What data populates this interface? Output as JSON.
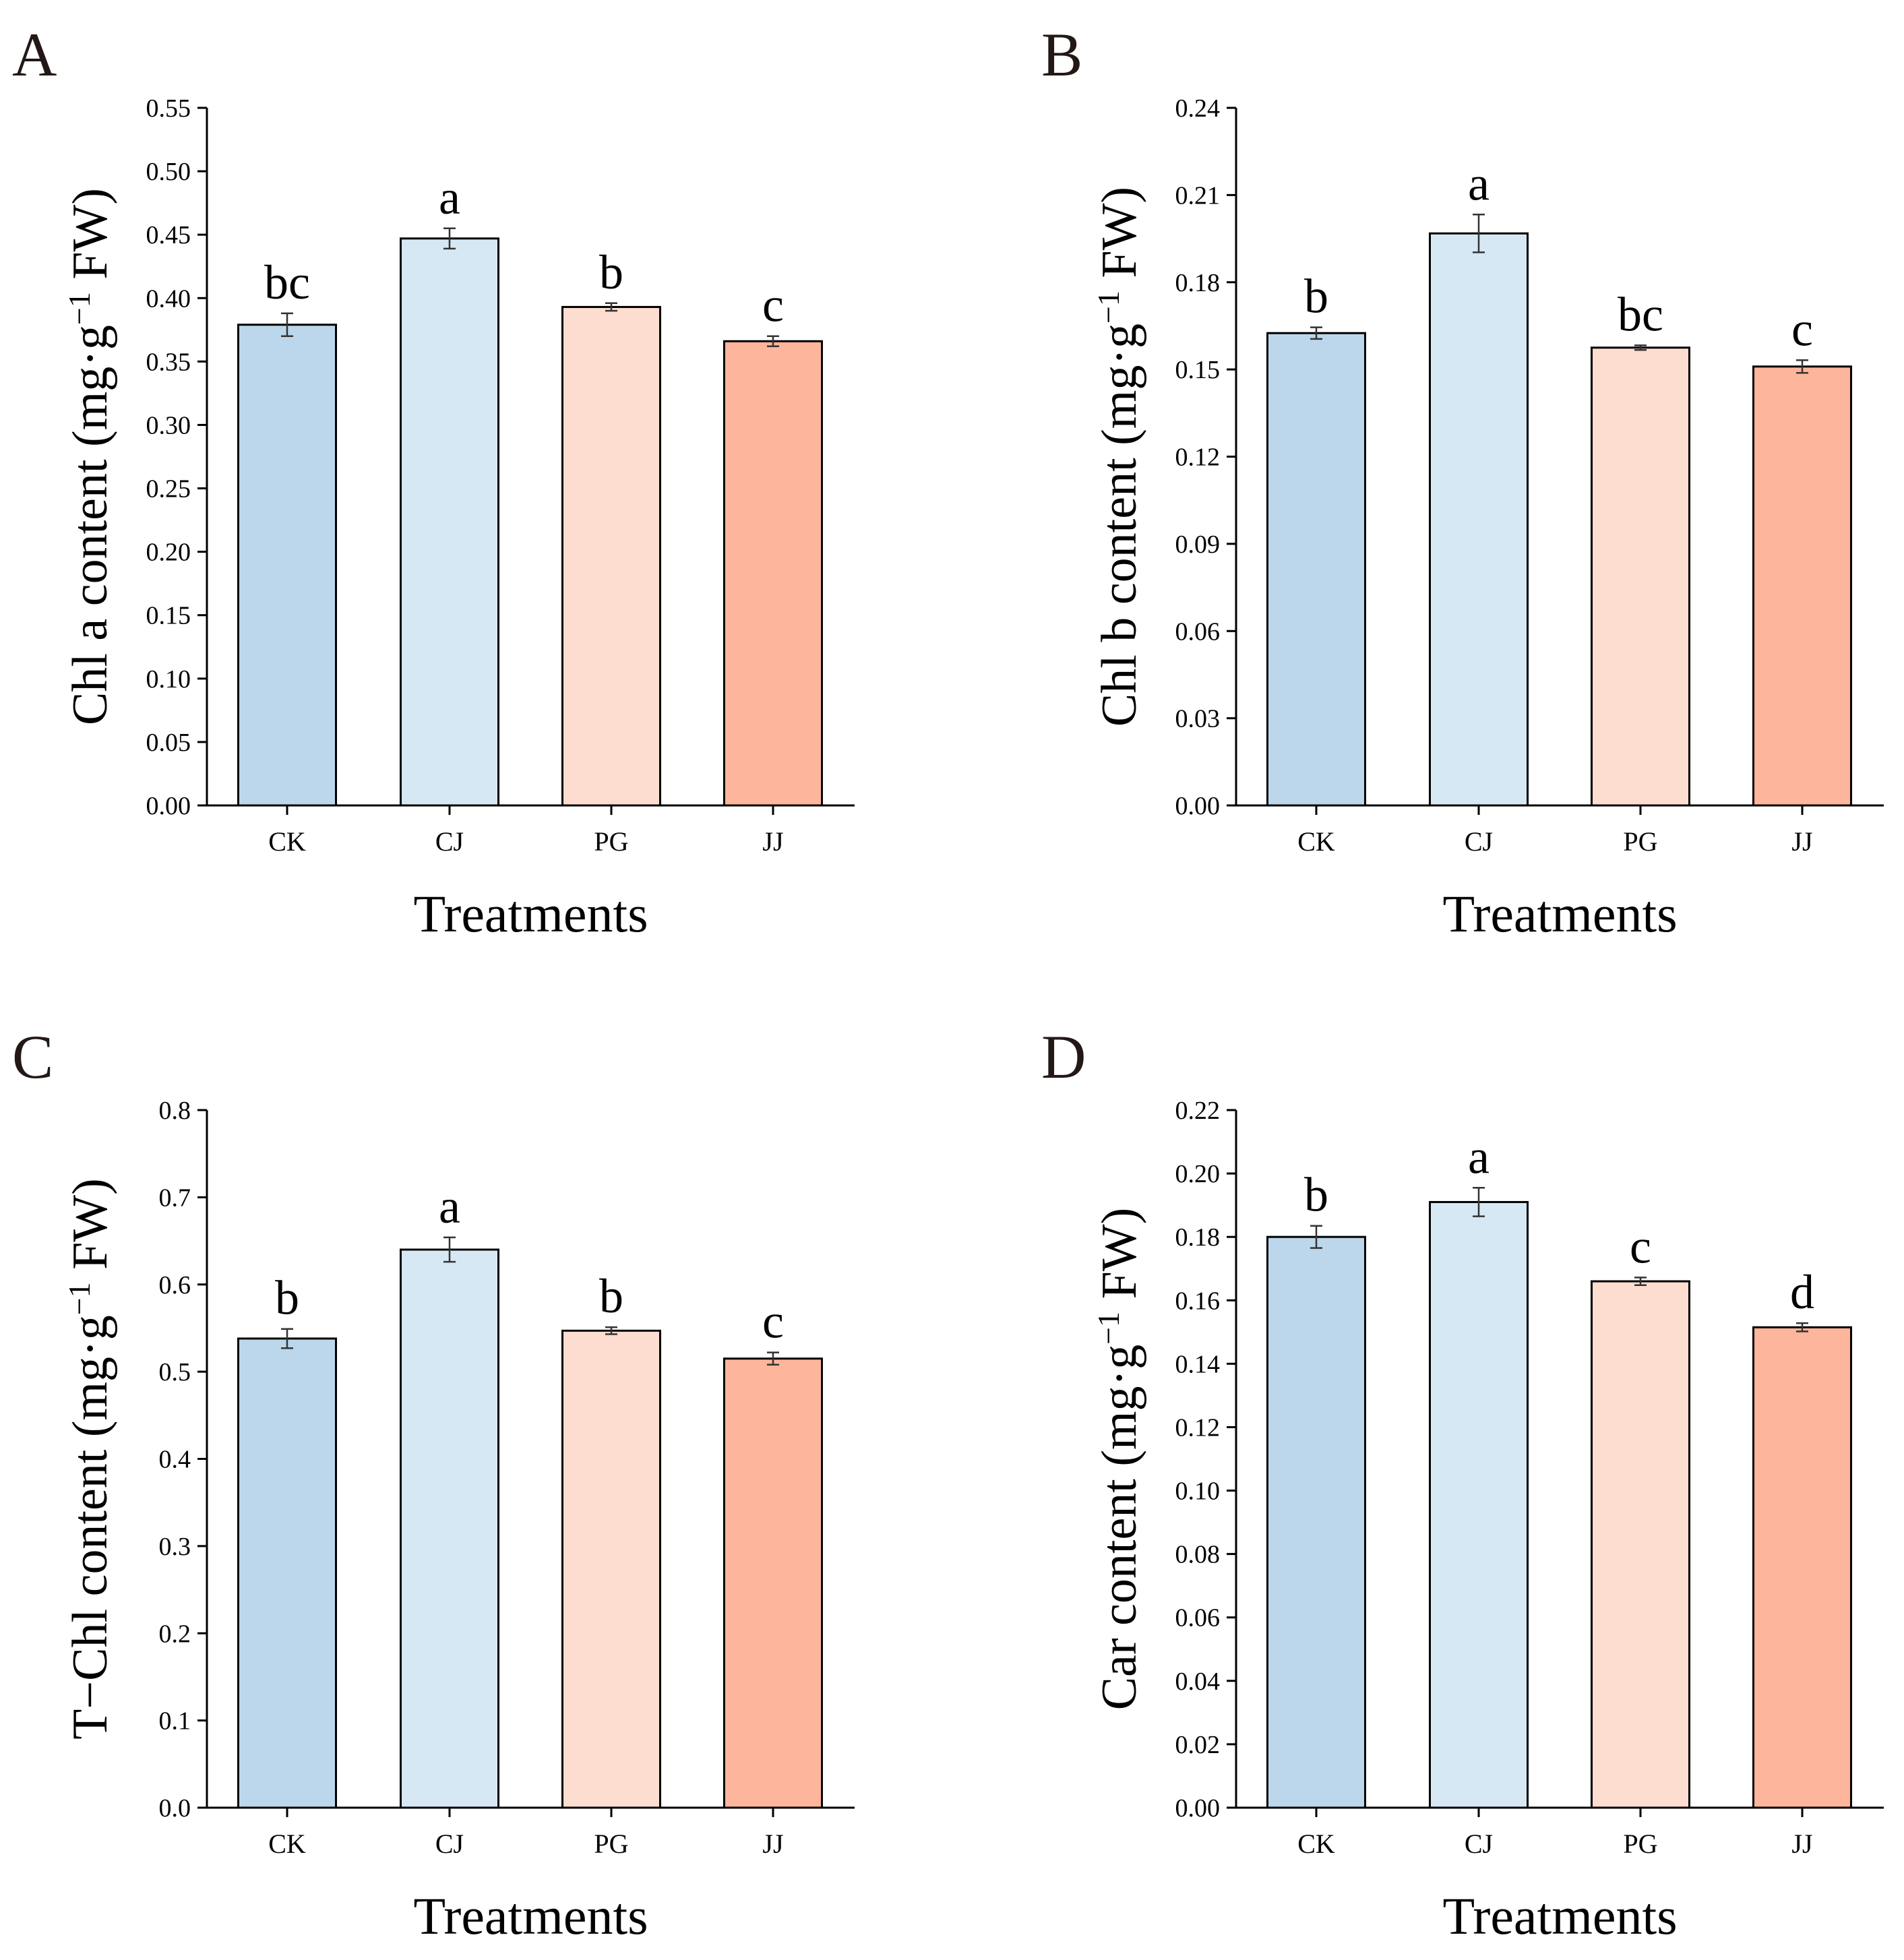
{
  "colors": {
    "CK": "#bcd7eb",
    "CJ": "#d6e8f4",
    "PG": "#fdddd0",
    "JJ": "#fdb59b"
  },
  "chart_data": [
    {
      "panel": "A",
      "type": "bar",
      "categories": [
        "CK",
        "CJ",
        "PG",
        "JJ"
      ],
      "values": [
        0.379,
        0.447,
        0.393,
        0.366
      ],
      "errors": [
        0.009,
        0.008,
        0.003,
        0.004
      ],
      "letters": [
        "bc",
        "a",
        "b",
        "c"
      ],
      "xlabel": "Treatments",
      "ylabel_main": "Chl a content (mg·g",
      "ylabel_sup": "−1",
      "ylabel_tail": " FW)",
      "ylim": [
        0,
        0.55
      ],
      "yticks": [
        "0.00",
        "0.05",
        "0.10",
        "0.15",
        "0.20",
        "0.25",
        "0.30",
        "0.35",
        "0.40",
        "0.45",
        "0.50",
        "0.55"
      ]
    },
    {
      "panel": "B",
      "type": "bar",
      "categories": [
        "CK",
        "CJ",
        "PG",
        "JJ"
      ],
      "values": [
        0.1625,
        0.1968,
        0.1575,
        0.151
      ],
      "errors": [
        0.002,
        0.0065,
        0.0008,
        0.0022
      ],
      "letters": [
        "b",
        "a",
        "bc",
        "c"
      ],
      "xlabel": "Treatments",
      "ylabel_main": "Chl b content (mg·g",
      "ylabel_sup": "−1",
      "ylabel_tail": " FW)",
      "ylim": [
        0,
        0.24
      ],
      "yticks": [
        "0.00",
        "0.03",
        "0.06",
        "0.09",
        "0.12",
        "0.15",
        "0.18",
        "0.21",
        "0.24"
      ]
    },
    {
      "panel": "C",
      "type": "bar",
      "categories": [
        "CK",
        "CJ",
        "PG",
        "JJ"
      ],
      "values": [
        0.538,
        0.64,
        0.547,
        0.515
      ],
      "errors": [
        0.011,
        0.014,
        0.004,
        0.007
      ],
      "letters": [
        "b",
        "a",
        "b",
        "c"
      ],
      "xlabel": "Treatments",
      "ylabel_main": "T−Chl content (mg·g",
      "ylabel_sup": "−1",
      "ylabel_tail": " FW)",
      "ylim": [
        0,
        0.8
      ],
      "yticks": [
        "0.0",
        "0.1",
        "0.2",
        "0.3",
        "0.4",
        "0.5",
        "0.6",
        "0.7",
        "0.8"
      ]
    },
    {
      "panel": "D",
      "type": "bar",
      "categories": [
        "CK",
        "CJ",
        "PG",
        "JJ"
      ],
      "values": [
        0.18,
        0.191,
        0.166,
        0.1515
      ],
      "errors": [
        0.0035,
        0.0045,
        0.0012,
        0.0013
      ],
      "letters": [
        "b",
        "a",
        "c",
        "d"
      ],
      "xlabel": "Treatments",
      "ylabel_main": "Car content (mg·g",
      "ylabel_sup": "−1",
      "ylabel_tail": " FW)",
      "ylim": [
        0,
        0.22
      ],
      "yticks": [
        "0.00",
        "0.02",
        "0.04",
        "0.06",
        "0.08",
        "0.10",
        "0.12",
        "0.14",
        "0.16",
        "0.18",
        "0.20",
        "0.22"
      ]
    }
  ]
}
